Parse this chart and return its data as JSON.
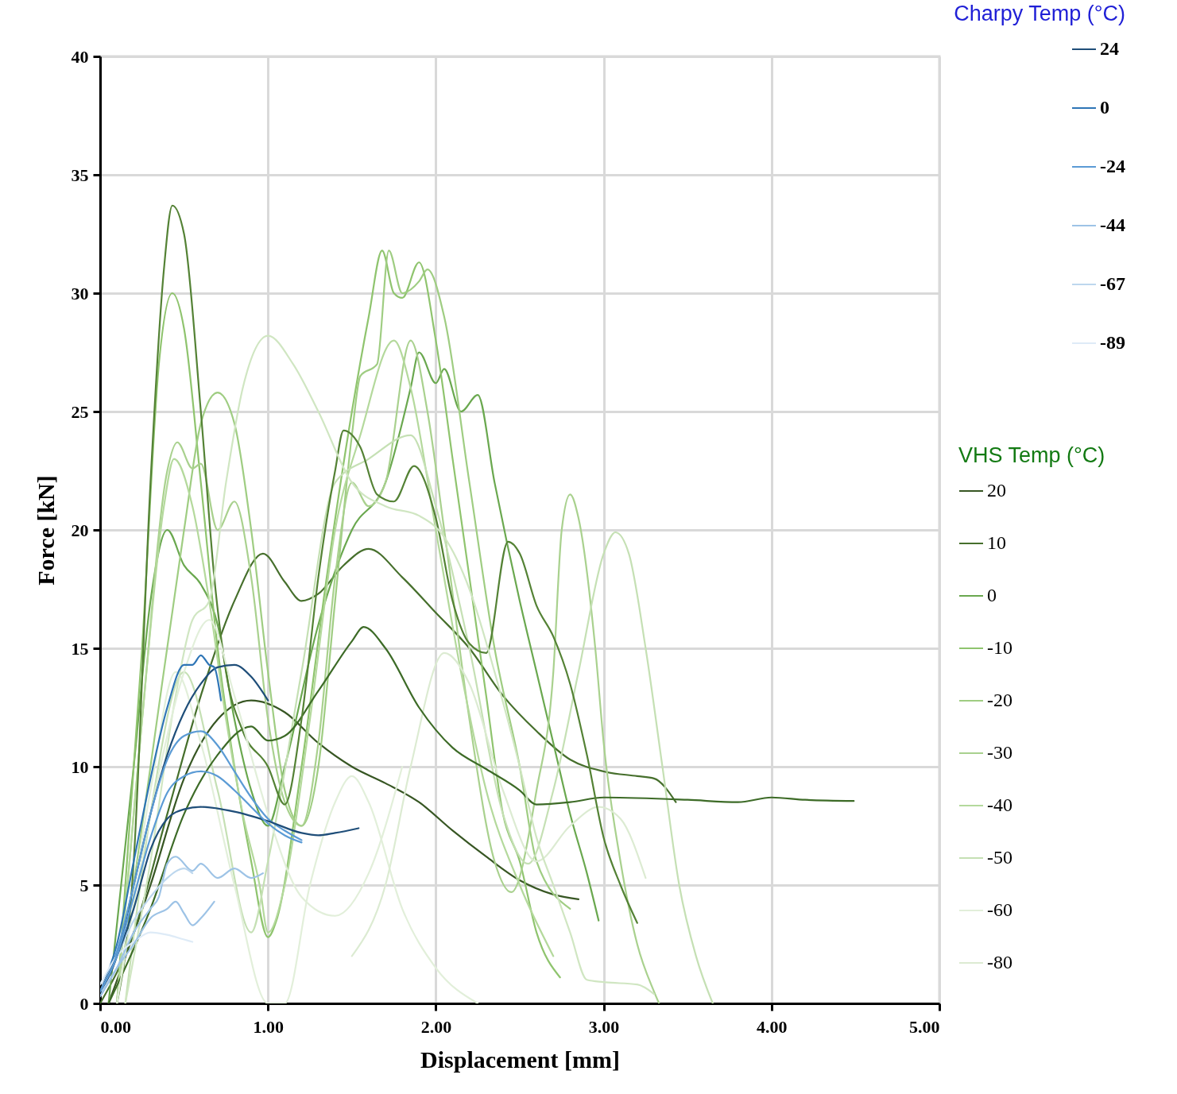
{
  "chart_data": {
    "type": "line",
    "xlabel": "Displacement [mm]",
    "ylabel": "Force [kN]",
    "legend_title": [
      "Charpy Temp (°C)",
      "VHS Temp (°C)"
    ],
    "xlim": [
      0,
      5
    ],
    "ylim": [
      0,
      40
    ],
    "xticks": [
      {
        "value": 0,
        "label": "0.00"
      },
      {
        "value": 1,
        "label": "1.00"
      },
      {
        "value": 2,
        "label": "2.00"
      },
      {
        "value": 3,
        "label": "3.00"
      },
      {
        "value": 4,
        "label": "4.00"
      },
      {
        "value": 5,
        "label": "5.00"
      }
    ],
    "yticks": [
      0,
      5,
      10,
      15,
      20,
      25,
      30,
      35,
      40
    ],
    "grid": true,
    "legend": "right",
    "series": [
      {
        "name": "24",
        "color": "#1f4e79",
        "x": [
          0,
          0.1,
          0.2,
          0.3,
          0.4,
          0.5,
          0.6,
          0.7,
          0.8,
          0.9,
          1.0
        ],
        "values": [
          0.5,
          2,
          5,
          8,
          10.5,
          12.3,
          13.5,
          14.2,
          14.3,
          13.8,
          12.8
        ]
      },
      {
        "name": "0",
        "color": "#2e75b6",
        "x": [
          0,
          0.1,
          0.2,
          0.3,
          0.4,
          0.5,
          0.55,
          0.6,
          0.65,
          0.68,
          0.72
        ],
        "values": [
          0.5,
          2.5,
          6,
          9.5,
          12.5,
          14.3,
          14.3,
          14.7,
          14.3,
          14.2,
          12.8
        ]
      },
      {
        "name": "-24",
        "color": "#5b9bd5",
        "x": [
          0,
          0.1,
          0.2,
          0.3,
          0.4,
          0.5,
          0.6,
          0.7,
          0.8,
          0.9,
          1.0,
          1.1,
          1.2
        ],
        "values": [
          0.5,
          2.2,
          5,
          8,
          10.3,
          11.3,
          11.5,
          10.9,
          9.8,
          8.7,
          7.8,
          7.3,
          6.9
        ]
      },
      {
        "name": "-44",
        "color": "#9dc3e6",
        "x": [
          0,
          0.1,
          0.2,
          0.3,
          0.35,
          0.4,
          0.45,
          0.55,
          0.6,
          0.7,
          0.8,
          0.9,
          0.97
        ],
        "values": [
          0.3,
          1.5,
          3,
          4,
          4.5,
          5.9,
          6.2,
          5.6,
          5.9,
          5.3,
          5.7,
          5.3,
          5.5
        ]
      },
      {
        "name": "-67",
        "color": "#bdd7ee",
        "x": [
          0,
          0.1,
          0.2,
          0.3,
          0.4,
          0.5,
          0.55
        ],
        "values": [
          0.5,
          2,
          3.5,
          4.5,
          5.3,
          5.7,
          5.5
        ]
      },
      {
        "name": "-89",
        "color": "#deebf7",
        "x": [
          0,
          0.1,
          0.2,
          0.3,
          0.4,
          0.5,
          0.55
        ],
        "values": [
          0.8,
          2,
          2.6,
          3.0,
          2.9,
          2.7,
          2.6
        ]
      },
      {
        "color": "#1f4e79",
        "x": [
          0,
          0.1,
          0.2,
          0.3,
          0.4,
          0.5,
          0.6,
          0.8,
          1.0,
          1.2,
          1.3,
          1.4,
          1.54
        ],
        "values": [
          0.5,
          2,
          4,
          6.5,
          7.8,
          8.2,
          8.3,
          8.1,
          7.7,
          7.2,
          7.1,
          7.2,
          7.4
        ]
      },
      {
        "color": "#5b9bd5",
        "x": [
          0,
          0.1,
          0.2,
          0.3,
          0.4,
          0.5,
          0.6,
          0.7,
          0.8,
          0.9,
          1.0,
          1.1,
          1.2
        ],
        "values": [
          0.5,
          2,
          4.5,
          7,
          8.9,
          9.6,
          9.8,
          9.6,
          9.0,
          8.3,
          7.6,
          7.1,
          6.8
        ]
      },
      {
        "color": "#9dc3e6",
        "x": [
          0,
          0.1,
          0.2,
          0.3,
          0.4,
          0.45,
          0.5,
          0.55,
          0.6,
          0.68
        ],
        "values": [
          0.3,
          1.5,
          2.5,
          3.6,
          4,
          4.3,
          3.8,
          3.3,
          3.6,
          4.3
        ]
      },
      {
        "name": "20",
        "color": "#375623",
        "x": [
          0.05,
          0.3,
          0.5,
          0.7,
          0.9,
          1.1,
          1.3,
          1.5,
          1.7,
          1.9,
          2.1,
          2.3,
          2.5,
          2.7,
          2.85
        ],
        "values": [
          0,
          5,
          9.5,
          12,
          12.8,
          12.3,
          11,
          10,
          9.3,
          8.5,
          7.3,
          6.2,
          5.2,
          4.6,
          4.4
        ]
      },
      {
        "name": "10",
        "color": "#466f2c",
        "x": [
          0,
          0.2,
          0.4,
          0.6,
          0.8,
          0.97,
          1.1,
          1.2,
          1.3,
          1.45,
          1.6,
          1.8,
          2.0,
          2.2,
          2.4,
          2.6,
          2.8,
          3.0,
          3.2,
          3.3,
          3.43
        ],
        "values": [
          0,
          3,
          8,
          13,
          17,
          19,
          17.8,
          17,
          17.3,
          18.5,
          19.2,
          18,
          16.5,
          15,
          13,
          11.5,
          10.3,
          9.8,
          9.6,
          9.5,
          8.5
        ]
      },
      {
        "name": "0",
        "color": "#6aa84f",
        "x": [
          0.05,
          0.2,
          0.3,
          0.4,
          0.5,
          0.6,
          0.7,
          0.8,
          0.9,
          1.0,
          1.1,
          1.3,
          1.5,
          1.7,
          1.85,
          1.9,
          2.0,
          2.05,
          2.15,
          2.25,
          2.35,
          2.5,
          2.6,
          2.7,
          2.8,
          2.9,
          2.97
        ],
        "values": [
          0,
          10,
          17,
          20,
          18.5,
          17.7,
          16,
          12,
          9,
          7.5,
          10,
          16,
          20,
          22,
          26,
          27.5,
          26.2,
          26.8,
          25,
          25.7,
          22,
          17,
          14,
          11,
          8,
          5.5,
          3.5
        ]
      },
      {
        "name": "-10",
        "color": "#8fc46e",
        "x": [
          0.1,
          0.25,
          0.35,
          0.43,
          0.5,
          0.6,
          0.7,
          0.8,
          0.9,
          1.0,
          1.05,
          1.2,
          1.35,
          1.5,
          1.6,
          1.68,
          1.75,
          1.8,
          1.9,
          2.0,
          2.1,
          2.2,
          2.3,
          2.4,
          2.5,
          2.6,
          2.74
        ],
        "values": [
          0,
          15,
          27,
          30,
          28.5,
          22,
          15,
          10,
          6,
          2.8,
          3.5,
          10,
          18,
          25,
          29,
          31.8,
          30,
          29.8,
          31.3,
          28,
          23,
          18,
          13,
          8,
          6,
          3,
          1.1
        ]
      },
      {
        "name": "-20",
        "color": "#9fcd82",
        "x": [
          0.1,
          0.3,
          0.5,
          0.6,
          0.7,
          0.8,
          0.9,
          1.0,
          1.1,
          1.2,
          1.3,
          1.4,
          1.5,
          1.55,
          1.65,
          1.72,
          1.8,
          1.9,
          1.95,
          2.05,
          2.2,
          2.35,
          2.5,
          2.6,
          2.8
        ],
        "values": [
          0,
          10,
          20,
          24.5,
          25.8,
          24.5,
          20,
          14,
          9,
          7.5,
          10,
          17,
          24,
          26.5,
          27,
          31.8,
          30,
          30.5,
          31,
          29,
          22,
          15,
          10,
          6,
          4
        ]
      },
      {
        "name": "-30",
        "color": "#a9d18e",
        "x": [
          0.1,
          0.25,
          0.4,
          0.46,
          0.55,
          0.6,
          0.7,
          0.8,
          0.9,
          1.0,
          1.1,
          1.2,
          1.3,
          1.4,
          1.5,
          1.6,
          1.7,
          1.85,
          1.95,
          2.05,
          2.2,
          2.35,
          2.45,
          2.6,
          2.7,
          2.75,
          2.8,
          2.85,
          2.95,
          3.0,
          3.1,
          3.2,
          3.3,
          3.33
        ],
        "values": [
          0,
          12,
          22.5,
          23.7,
          22.6,
          22.8,
          20,
          21.2,
          18,
          12,
          8.5,
          7.5,
          11,
          18,
          22,
          21,
          22,
          28,
          25,
          20,
          12,
          6,
          4.7,
          9,
          14,
          20,
          21.5,
          20.5,
          15,
          11,
          6,
          2.5,
          0.5,
          0
        ]
      },
      {
        "name": "-40",
        "color": "#b4d99c",
        "x": [
          0.1,
          0.25,
          0.38,
          0.44,
          0.55,
          0.65,
          0.75,
          0.85,
          0.95,
          1.0,
          1.1,
          1.25,
          1.4,
          1.55,
          1.75,
          1.85,
          2.0,
          2.15,
          2.3,
          2.5,
          2.7
        ],
        "values": [
          0,
          12,
          21,
          23,
          21,
          17,
          12,
          8,
          5,
          3,
          5,
          12,
          20,
          24,
          28,
          26,
          20,
          14,
          9,
          5,
          2
        ]
      },
      {
        "name": "-50",
        "color": "#c5e0b4",
        "x": [
          0.15,
          0.3,
          0.5,
          0.7,
          0.9,
          1.0,
          1.2,
          1.4,
          1.6,
          1.85,
          2.0,
          2.2,
          2.4,
          2.55,
          2.7,
          2.85,
          3.0,
          3.07,
          3.15,
          3.25,
          3.35,
          3.45,
          3.55,
          3.65
        ],
        "values": [
          0,
          8,
          14,
          9,
          3,
          6,
          14,
          22,
          23,
          24,
          21,
          15,
          8,
          5.9,
          9,
          14,
          19,
          19.9,
          19,
          15,
          10,
          5,
          2,
          0
        ]
      },
      {
        "name": "-60",
        "color": "#e2efda",
        "x": [
          0.1,
          0.3,
          0.45,
          0.6,
          0.8,
          1.0,
          1.1,
          1.25,
          1.4,
          1.5,
          1.6,
          1.8,
          2.0,
          2.25
        ],
        "values": [
          0,
          9,
          14,
          11,
          5,
          0,
          0,
          5,
          8.5,
          9.6,
          8.5,
          4,
          1.5,
          0
        ]
      },
      {
        "name": "-80",
        "color": "#dcebd2",
        "x": [
          1.5,
          1.7,
          1.85,
          2.05,
          2.2,
          2.4,
          2.6,
          2.8,
          2.97,
          3.1,
          3.25
        ],
        "values": [
          2,
          5,
          10,
          14.8,
          13.5,
          9,
          6,
          7.5,
          8.3,
          7.8,
          5.3
        ]
      },
      {
        "color": "#3d6b27",
        "x": [
          0.05,
          0.3,
          0.5,
          0.7,
          0.9,
          1.0,
          1.1,
          1.3,
          1.5,
          1.57,
          1.7,
          1.9,
          2.1,
          2.3,
          2.5,
          2.6,
          2.8,
          3.0,
          3.5,
          3.8,
          4.0,
          4.2,
          4.49
        ],
        "values": [
          0,
          4,
          8,
          10.5,
          11.7,
          11.1,
          11.3,
          13.2,
          15.3,
          15.9,
          15,
          12.5,
          10.8,
          9.9,
          9,
          8.4,
          8.5,
          8.7,
          8.6,
          8.5,
          8.7,
          8.6,
          8.55
        ]
      },
      {
        "color": "#548235",
        "x": [
          0.1,
          0.2,
          0.3,
          0.38,
          0.43,
          0.5,
          0.6,
          0.68,
          0.75,
          0.85,
          1.0,
          1.1,
          1.2,
          1.3,
          1.4,
          1.45,
          1.55,
          1.65,
          1.75,
          1.87,
          2.0,
          2.1,
          2.2,
          2.3,
          2.43,
          2.5,
          2.6,
          2.7,
          2.8,
          2.9,
          3.0,
          3.1,
          3.2
        ],
        "values": [
          0,
          6,
          22,
          31,
          33.7,
          32.5,
          25,
          18,
          14,
          11.5,
          10,
          8.4,
          12,
          18,
          22.5,
          24.2,
          23.5,
          21.5,
          21.2,
          22.7,
          20.5,
          17,
          15.2,
          14.8,
          19.5,
          19,
          16.8,
          15.5,
          13.5,
          10.5,
          7,
          5,
          3.4
        ]
      },
      {
        "color": "#d0e6c2",
        "x": [
          0.15,
          0.3,
          0.45,
          0.55,
          0.65,
          0.75,
          0.85,
          1.0,
          1.15,
          1.3,
          1.5,
          1.7,
          1.9,
          2.05,
          2.2,
          2.35,
          2.5,
          2.6,
          2.7,
          2.8,
          2.9,
          3.0,
          3.2,
          3.3
        ],
        "values": [
          0,
          6,
          13,
          16.2,
          17,
          22,
          26,
          28.2,
          27,
          25,
          22,
          21,
          20.6,
          19.7,
          17.5,
          14,
          10,
          7,
          5,
          3,
          1,
          0.9,
          0.8,
          0.4
        ]
      },
      {
        "color": "#e2efda",
        "x": [
          0.1,
          0.3,
          0.5,
          0.65,
          0.8,
          1.0,
          1.2,
          1.4,
          1.6,
          1.8
        ],
        "values": [
          0,
          8,
          14,
          16.2,
          13,
          8,
          4.5,
          3.7,
          5.5,
          10
        ]
      }
    ]
  }
}
